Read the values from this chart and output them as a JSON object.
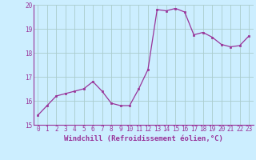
{
  "x": [
    0,
    1,
    2,
    3,
    4,
    5,
    6,
    7,
    8,
    9,
    10,
    11,
    12,
    13,
    14,
    15,
    16,
    17,
    18,
    19,
    20,
    21,
    22,
    23
  ],
  "y": [
    15.4,
    15.8,
    16.2,
    16.3,
    16.4,
    16.5,
    16.8,
    16.4,
    15.9,
    15.8,
    15.8,
    16.5,
    17.3,
    19.8,
    19.75,
    19.85,
    19.7,
    18.75,
    18.85,
    18.65,
    18.35,
    18.25,
    18.3,
    18.7
  ],
  "line_color": "#993399",
  "marker": "s",
  "marker_size": 2,
  "bg_color": "#cceeff",
  "grid_color": "#aacccc",
  "xlabel": "Windchill (Refroidissement éolien,°C)",
  "xlabel_color": "#993399",
  "tick_color": "#993399",
  "ylim": [
    15,
    20
  ],
  "xlim": [
    -0.5,
    23.5
  ],
  "yticks": [
    15,
    16,
    17,
    18,
    19,
    20
  ],
  "xticks": [
    0,
    1,
    2,
    3,
    4,
    5,
    6,
    7,
    8,
    9,
    10,
    11,
    12,
    13,
    14,
    15,
    16,
    17,
    18,
    19,
    20,
    21,
    22,
    23
  ],
  "xtick_labels": [
    "0",
    "1",
    "2",
    "3",
    "4",
    "5",
    "6",
    "7",
    "8",
    "9",
    "10",
    "11",
    "12",
    "13",
    "14",
    "15",
    "16",
    "17",
    "18",
    "19",
    "20",
    "21",
    "22",
    "23"
  ],
  "tick_fontsize": 5.5,
  "xlabel_fontsize": 6.5
}
